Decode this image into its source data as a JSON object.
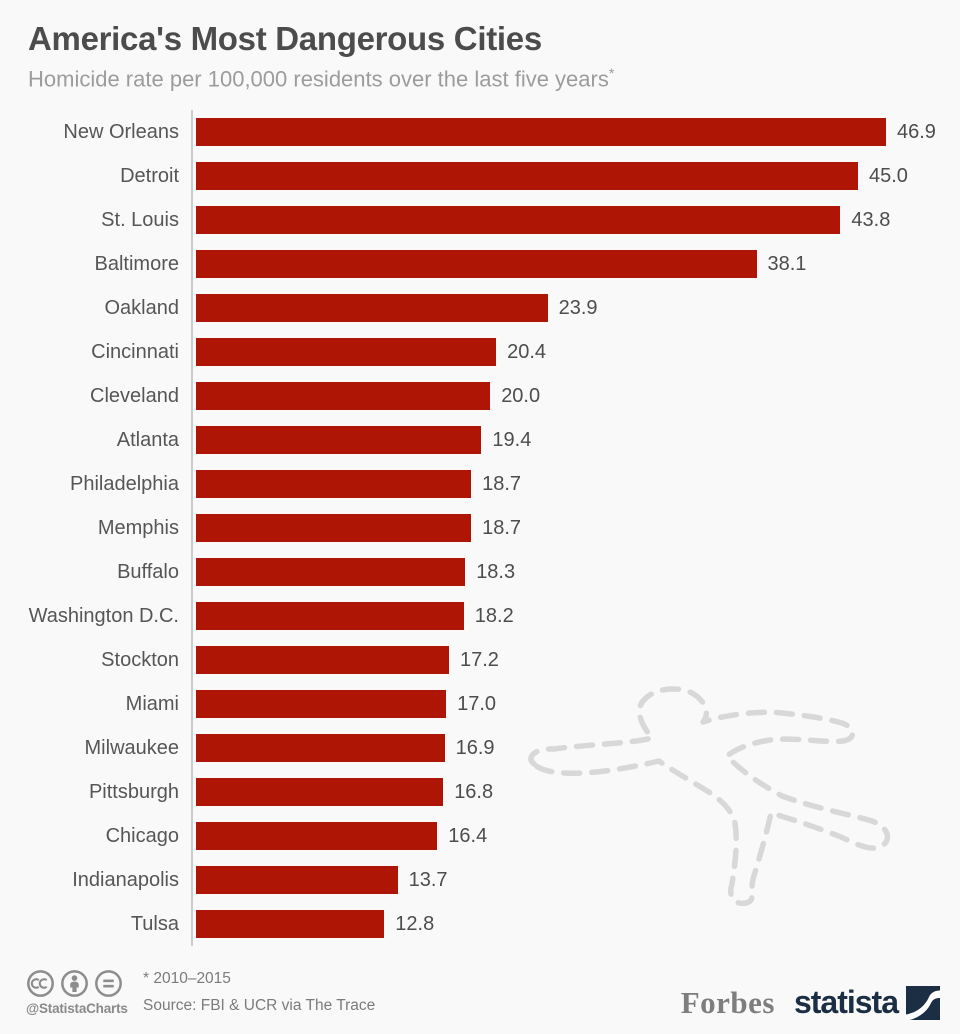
{
  "header": {
    "title": "America's Most Dangerous Cities",
    "subtitle_text": "Homicide rate per 100,000 residents over the last five years",
    "footnote_marker": "*"
  },
  "chart_data": {
    "type": "bar",
    "orientation": "horizontal",
    "title": "America's Most Dangerous Cities",
    "subtitle": "Homicide rate per 100,000 residents over the last five years*",
    "categories": [
      "New Orleans",
      "Detroit",
      "St. Louis",
      "Baltimore",
      "Oakland",
      "Cincinnati",
      "Cleveland",
      "Atlanta",
      "Philadelphia",
      "Memphis",
      "Buffalo",
      "Washington D.C.",
      "Stockton",
      "Miami",
      "Milwaukee",
      "Pittsburgh",
      "Chicago",
      "Indianapolis",
      "Tulsa"
    ],
    "values": [
      46.9,
      45.0,
      43.8,
      38.1,
      23.9,
      20.4,
      20.0,
      19.4,
      18.7,
      18.7,
      18.3,
      18.2,
      17.2,
      17.0,
      16.9,
      16.8,
      16.4,
      13.7,
      12.8
    ],
    "xlabel": "",
    "ylabel": "",
    "xlim": [
      0,
      46.9
    ],
    "grid": false,
    "legend": false,
    "value_labels": true,
    "bar_color": "#ae1505"
  },
  "footer": {
    "license_icons": [
      "cc-icon",
      "attribution-icon",
      "equals-icon"
    ],
    "credit_handle": "@StatistaCharts",
    "footnote": "* 2010–2015",
    "source": "Source: FBI & UCR via The Trace",
    "brands": {
      "forbes": "Forbes",
      "statista": "statista"
    }
  },
  "colors": {
    "bar": "#ae1505",
    "background": "#f9f9f9",
    "title": "#4c4c4c",
    "subtitle": "#9c9c9c",
    "axis": "#cbcbcb",
    "label": "#565656",
    "value": "#4d4d4d",
    "footer_text": "#7b7b7b",
    "license_gray": "#8d8d8d",
    "forbes_gray": "#7e7e7e",
    "statista_navy": "#1b2e44",
    "chalk": "#d8d8d8"
  }
}
